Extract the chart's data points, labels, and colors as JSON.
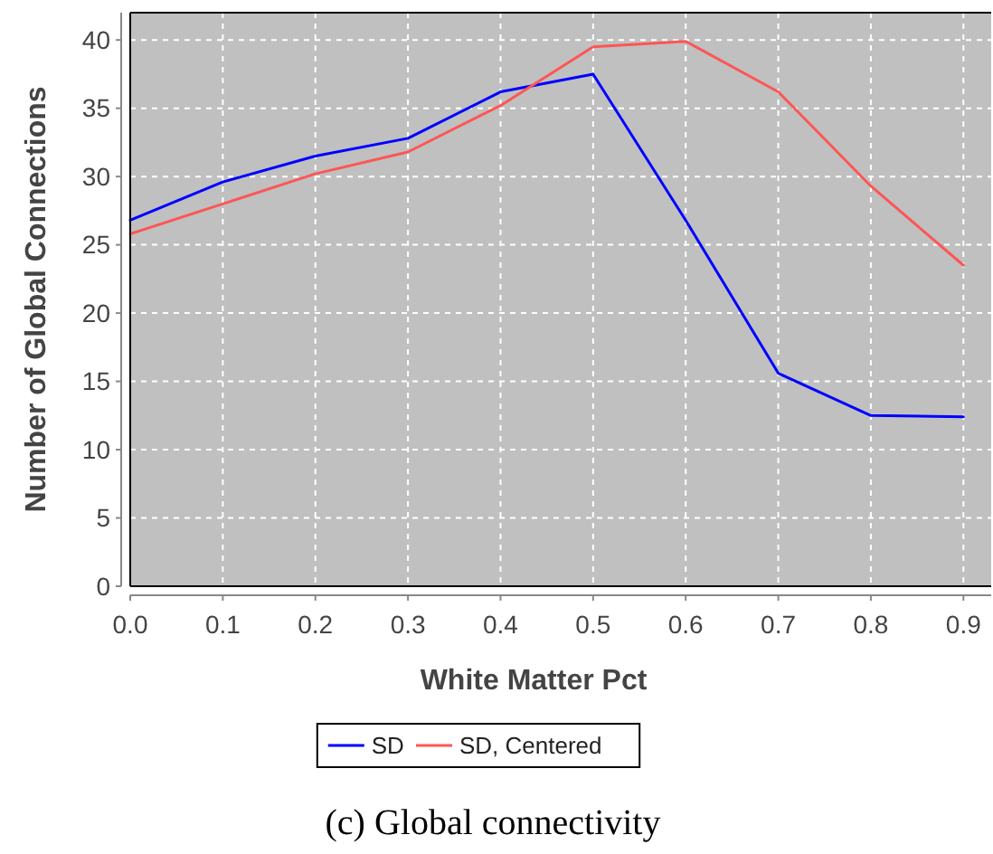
{
  "chart_data": {
    "type": "line",
    "xlabel": "White Matter Pct",
    "ylabel": "Number of Global Connections",
    "x": [
      0.0,
      0.1,
      0.2,
      0.3,
      0.4,
      0.5,
      0.6,
      0.7,
      0.8,
      0.9
    ],
    "series": [
      {
        "name": "SD",
        "color": "#0000ff",
        "values": [
          26.8,
          29.6,
          31.5,
          32.8,
          36.2,
          37.5,
          26.8,
          15.6,
          12.5,
          12.4
        ]
      },
      {
        "name": "SD, Centered",
        "color": "#ff5555",
        "values": [
          25.8,
          28.0,
          30.2,
          31.8,
          35.2,
          39.5,
          39.9,
          36.2,
          29.3,
          23.5
        ]
      }
    ],
    "xlim": [
      0,
      0.93
    ],
    "ylim": [
      0,
      42
    ],
    "xticks": [
      {
        "value": 0,
        "label": "0.0"
      },
      0.1,
      0.2,
      0.3,
      0.4,
      0.5,
      0.6,
      0.7,
      0.8,
      0.9
    ],
    "yticks": [
      0,
      5,
      10,
      15,
      20,
      25,
      30,
      35,
      40
    ],
    "grid": true,
    "legend": "bottom",
    "marker": "none",
    "line_style": "solid",
    "annotations": [
      "(c) Global connectivity"
    ]
  }
}
